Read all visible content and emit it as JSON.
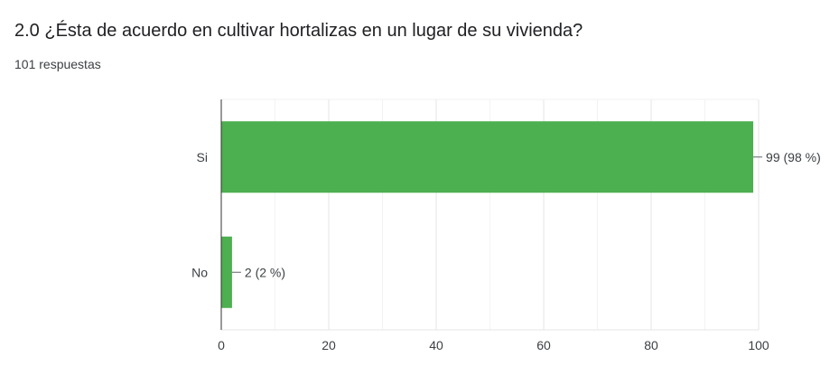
{
  "question": {
    "title": "2.0 ¿Ésta de acuerdo en cultivar hortalizas en un lugar de su vivienda?",
    "response_count": "101 respuestas"
  },
  "chart_data": {
    "type": "bar",
    "orientation": "horizontal",
    "categories": [
      "Si",
      "No"
    ],
    "values": [
      99,
      2
    ],
    "data_labels": [
      "99 (98 %)",
      "2 (2 %)"
    ],
    "xlim": [
      0,
      100
    ],
    "x_ticks": [
      0,
      20,
      40,
      60,
      80,
      100
    ],
    "grid": true,
    "bar_color": "#4caf50"
  }
}
